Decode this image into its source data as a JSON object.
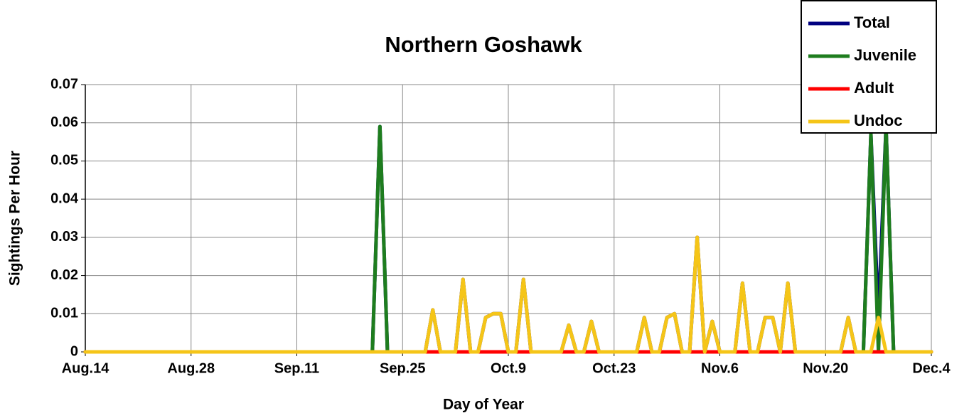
{
  "chart_data": {
    "type": "line",
    "title": "Northern Goshawk",
    "xlabel": "Day of Year",
    "ylabel": "Sightings Per Hour",
    "categories": [
      "Aug.14",
      null,
      null,
      null,
      null,
      null,
      null,
      null,
      null,
      null,
      null,
      null,
      null,
      null,
      "Aug.28",
      null,
      null,
      null,
      null,
      null,
      null,
      null,
      null,
      null,
      null,
      null,
      null,
      null,
      "Sep.11",
      null,
      null,
      null,
      null,
      null,
      null,
      null,
      null,
      null,
      null,
      null,
      null,
      null,
      "Sep.25",
      null,
      null,
      null,
      null,
      null,
      null,
      null,
      null,
      null,
      null,
      null,
      null,
      null,
      "Oct.9",
      null,
      null,
      null,
      null,
      null,
      null,
      null,
      null,
      null,
      null,
      null,
      null,
      null,
      "Oct.23",
      null,
      null,
      null,
      null,
      null,
      null,
      null,
      null,
      null,
      null,
      null,
      null,
      null,
      "Nov.6",
      null,
      null,
      null,
      null,
      null,
      null,
      null,
      null,
      null,
      null,
      null,
      null,
      null,
      "Nov.20",
      null,
      null,
      null,
      null,
      null,
      null,
      null,
      null,
      null,
      null,
      null,
      null,
      null,
      "Dec.4"
    ],
    "series": [
      {
        "name": "Total",
        "color": "#000080",
        "values": [
          0,
          0,
          0,
          0,
          0,
          0,
          0,
          0,
          0,
          0,
          0,
          0,
          0,
          0,
          0,
          0,
          0,
          0,
          0,
          0,
          0,
          0,
          0,
          0,
          0,
          0,
          0,
          0,
          0,
          0,
          0,
          0,
          0,
          0,
          0,
          0,
          0,
          0,
          0,
          0.059,
          0,
          0,
          0,
          0,
          0,
          0,
          0.011,
          0,
          0,
          0,
          0.019,
          0,
          0,
          0.009,
          0.01,
          0.01,
          0,
          0,
          0.019,
          0,
          0,
          0,
          0,
          0,
          0.007,
          0,
          0,
          0.008,
          0,
          0,
          0,
          0,
          0,
          0,
          0.009,
          0,
          0,
          0.009,
          0.01,
          0,
          0,
          0.03,
          0,
          0.008,
          0,
          0,
          0,
          0.018,
          0,
          0,
          0.009,
          0.009,
          0,
          0.018,
          0,
          0,
          0,
          0,
          0,
          0,
          0,
          0.009,
          0,
          0,
          0.057,
          0.009,
          0.059,
          0,
          0,
          0,
          0,
          0,
          0
        ]
      },
      {
        "name": "Juvenile",
        "color": "#1e7d1e",
        "values": [
          0,
          0,
          0,
          0,
          0,
          0,
          0,
          0,
          0,
          0,
          0,
          0,
          0,
          0,
          0,
          0,
          0,
          0,
          0,
          0,
          0,
          0,
          0,
          0,
          0,
          0,
          0,
          0,
          0,
          0,
          0,
          0,
          0,
          0,
          0,
          0,
          0,
          0,
          0,
          0.059,
          0,
          0,
          0,
          0,
          0,
          0,
          0,
          0,
          0,
          0,
          0,
          0,
          0,
          0,
          0,
          0,
          0,
          0,
          0,
          0,
          0,
          0,
          0,
          0,
          0,
          0,
          0,
          0,
          0,
          0,
          0,
          0,
          0,
          0,
          0,
          0,
          0,
          0,
          0,
          0,
          0,
          0,
          0,
          0,
          0,
          0,
          0,
          0,
          0,
          0,
          0,
          0,
          0,
          0,
          0,
          0,
          0,
          0,
          0,
          0,
          0,
          0,
          0,
          0,
          0.057,
          0,
          0.059,
          0,
          0,
          0,
          0,
          0,
          0
        ]
      },
      {
        "name": "Adult",
        "color": "#ff0000",
        "values": [
          0,
          0,
          0,
          0,
          0,
          0,
          0,
          0,
          0,
          0,
          0,
          0,
          0,
          0,
          0,
          0,
          0,
          0,
          0,
          0,
          0,
          0,
          0,
          0,
          0,
          0,
          0,
          0,
          0,
          0,
          0,
          0,
          0,
          0,
          0,
          0,
          0,
          0,
          0,
          0,
          0,
          0,
          0,
          0,
          0,
          0,
          0,
          0,
          0,
          0,
          0,
          0,
          0,
          0,
          0,
          0,
          0,
          0,
          0,
          0,
          0,
          0,
          0,
          0,
          0,
          0,
          0,
          0,
          0,
          0,
          0,
          0,
          0,
          0,
          0,
          0,
          0,
          0,
          0,
          0,
          0,
          0,
          0,
          0,
          0,
          0,
          0,
          0,
          0,
          0,
          0,
          0,
          0,
          0,
          0,
          0,
          0,
          0,
          0,
          0,
          0,
          0,
          0,
          0,
          0,
          0,
          0,
          0,
          0,
          0,
          0,
          0,
          0
        ]
      },
      {
        "name": "Undoc",
        "color": "#f5c518",
        "values": [
          0,
          0,
          0,
          0,
          0,
          0,
          0,
          0,
          0,
          0,
          0,
          0,
          0,
          0,
          0,
          0,
          0,
          0,
          0,
          0,
          0,
          0,
          0,
          0,
          0,
          0,
          0,
          0,
          0,
          0,
          0,
          0,
          0,
          0,
          0,
          0,
          0,
          0,
          0,
          0,
          0,
          0,
          0,
          0,
          0,
          0,
          0.011,
          0,
          0,
          0,
          0.019,
          0,
          0,
          0.009,
          0.01,
          0.01,
          0,
          0,
          0.019,
          0,
          0,
          0,
          0,
          0,
          0.007,
          0,
          0,
          0.008,
          0,
          0,
          0,
          0,
          0,
          0,
          0.009,
          0,
          0,
          0.009,
          0.01,
          0,
          0,
          0.03,
          0,
          0.008,
          0,
          0,
          0,
          0.018,
          0,
          0,
          0.009,
          0.009,
          0,
          0.018,
          0,
          0,
          0,
          0,
          0,
          0,
          0,
          0.009,
          0,
          0,
          0,
          0.009,
          0,
          0,
          0,
          0,
          0,
          0,
          0
        ]
      }
    ],
    "ylim": [
      0,
      0.07
    ],
    "yticks": [
      0,
      0.01,
      0.02,
      0.03,
      0.04,
      0.05,
      0.06,
      0.07
    ],
    "grid": true,
    "legend": "top-right"
  }
}
